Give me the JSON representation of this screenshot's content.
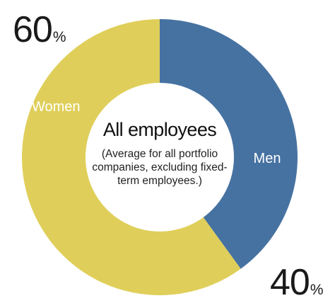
{
  "chart_data": {
    "type": "pie",
    "style": "donut",
    "title": "All employees",
    "subtitle": "(Average for all portfolio companies, excluding fixed-term employees.)",
    "categories": [
      "Men",
      "Women"
    ],
    "values": [
      40,
      60
    ],
    "unit": "%",
    "colors": {
      "Men": "#4672a1",
      "Women": "#dfcf5a"
    },
    "segment_labels": [
      "Men",
      "Women"
    ],
    "value_labels": [
      "40",
      "60"
    ],
    "percent_symbol": "%"
  }
}
